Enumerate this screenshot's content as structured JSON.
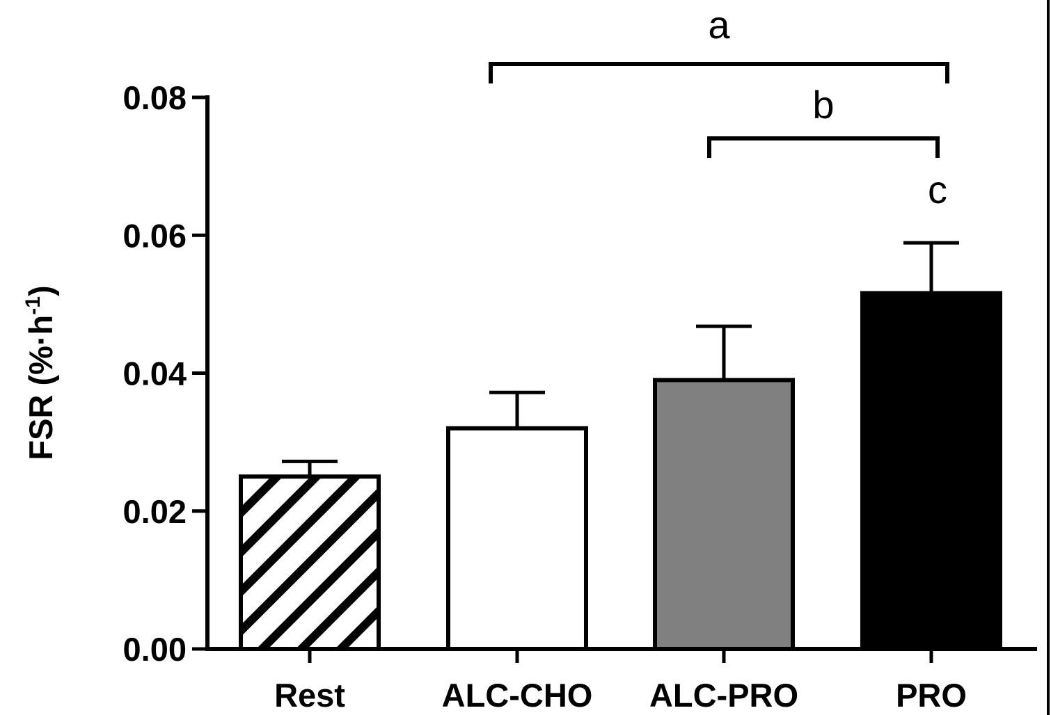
{
  "chart_data": {
    "type": "bar",
    "title": "",
    "xlabel": "",
    "ylabel": "FSR (%·h",
    "ylabel_superscript": "-1",
    "ylabel_suffix": ")",
    "ylim": [
      0,
      0.08
    ],
    "yticks": [
      "0.00",
      "0.02",
      "0.04",
      "0.06",
      "0.08"
    ],
    "grid": false,
    "categories": [
      "Rest",
      "ALC-CHO",
      "ALC-PRO",
      "PRO"
    ],
    "values": [
      0.025,
      0.032,
      0.039,
      0.0516
    ],
    "errors": [
      0.0022,
      0.0052,
      0.0078,
      0.0073
    ],
    "fills": [
      "hatched",
      "#ffffff",
      "#808080",
      "#000000"
    ],
    "annotations": [
      {
        "label": "a",
        "type": "bracket",
        "from": "ALC-CHO",
        "to": "PRO"
      },
      {
        "label": "b",
        "type": "bracket",
        "from": "ALC-PRO",
        "to": "PRO"
      },
      {
        "label": "c",
        "type": "text",
        "at": "PRO"
      }
    ]
  }
}
